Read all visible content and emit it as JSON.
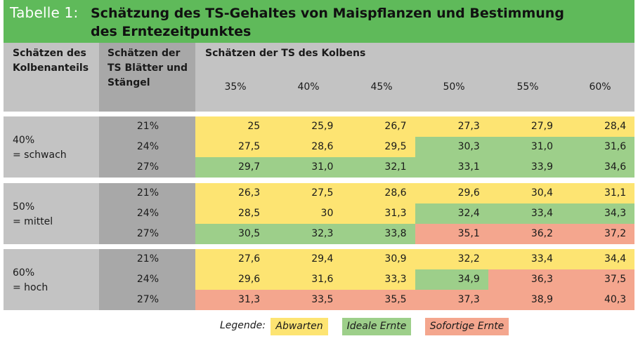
{
  "title": {
    "label": "Tabelle 1:",
    "text": "Schätzung des TS-Gehaltes von Maispflanzen und Bestimmung des Erntezeitpunktes"
  },
  "header": {
    "col1": "Schätzen des Kolbenanteils",
    "col2": "Schätzen der TS Blätter und Stängel",
    "col3": "Schätzen der TS des Kolbens",
    "percentages": [
      "35%",
      "40%",
      "45%",
      "50%",
      "55%",
      "60%"
    ]
  },
  "groups": [
    {
      "label": "40%\n= schwach",
      "rows": [
        {
          "ts": "21%",
          "values": [
            "25",
            "25,9",
            "26,7",
            "27,3",
            "27,9",
            "28,4"
          ],
          "status": [
            "y",
            "y",
            "y",
            "y",
            "y",
            "y"
          ]
        },
        {
          "ts": "24%",
          "values": [
            "27,5",
            "28,6",
            "29,5",
            "30,3",
            "31,0",
            "31,6"
          ],
          "status": [
            "y",
            "y",
            "y",
            "g",
            "g",
            "g"
          ]
        },
        {
          "ts": "27%",
          "values": [
            "29,7",
            "31,0",
            "32,1",
            "33,1",
            "33,9",
            "34,6"
          ],
          "status": [
            "g",
            "g",
            "g",
            "g",
            "g",
            "g"
          ]
        }
      ]
    },
    {
      "label": "50%\n= mittel",
      "rows": [
        {
          "ts": "21%",
          "values": [
            "26,3",
            "27,5",
            "28,6",
            "29,6",
            "30,4",
            "31,1"
          ],
          "status": [
            "y",
            "y",
            "y",
            "y",
            "y",
            "y"
          ]
        },
        {
          "ts": "24%",
          "values": [
            "28,5",
            "30",
            "31,3",
            "32,4",
            "33,4",
            "34,3"
          ],
          "status": [
            "y",
            "y",
            "y",
            "g",
            "g",
            "g"
          ]
        },
        {
          "ts": "27%",
          "values": [
            "30,5",
            "32,3",
            "33,8",
            "35,1",
            "36,2",
            "37,2"
          ],
          "status": [
            "g",
            "g",
            "g",
            "r",
            "r",
            "r"
          ]
        }
      ]
    },
    {
      "label": "60%\n= hoch",
      "rows": [
        {
          "ts": "21%",
          "values": [
            "27,6",
            "29,4",
            "30,9",
            "32,2",
            "33,4",
            "34,4"
          ],
          "status": [
            "y",
            "y",
            "y",
            "y",
            "y",
            "y"
          ]
        },
        {
          "ts": "24%",
          "values": [
            "29,6",
            "31,6",
            "33,3",
            "34,9",
            "36,3",
            "37,5"
          ],
          "status": [
            "y",
            "y",
            "y",
            "g",
            "r",
            "r"
          ]
        },
        {
          "ts": "27%",
          "values": [
            "31,3",
            "33,5",
            "35,5",
            "37,3",
            "38,9",
            "40,3"
          ],
          "status": [
            "r",
            "r",
            "r",
            "r",
            "r",
            "r"
          ]
        }
      ]
    }
  ],
  "legend": {
    "title": "Legende:",
    "items": [
      {
        "label": "Abwarten",
        "color": "#fde472"
      },
      {
        "label": "Ideale Ernte",
        "color": "#9dcf8a"
      },
      {
        "label": "Sofortige Ernte",
        "color": "#f4a68e"
      }
    ]
  }
}
